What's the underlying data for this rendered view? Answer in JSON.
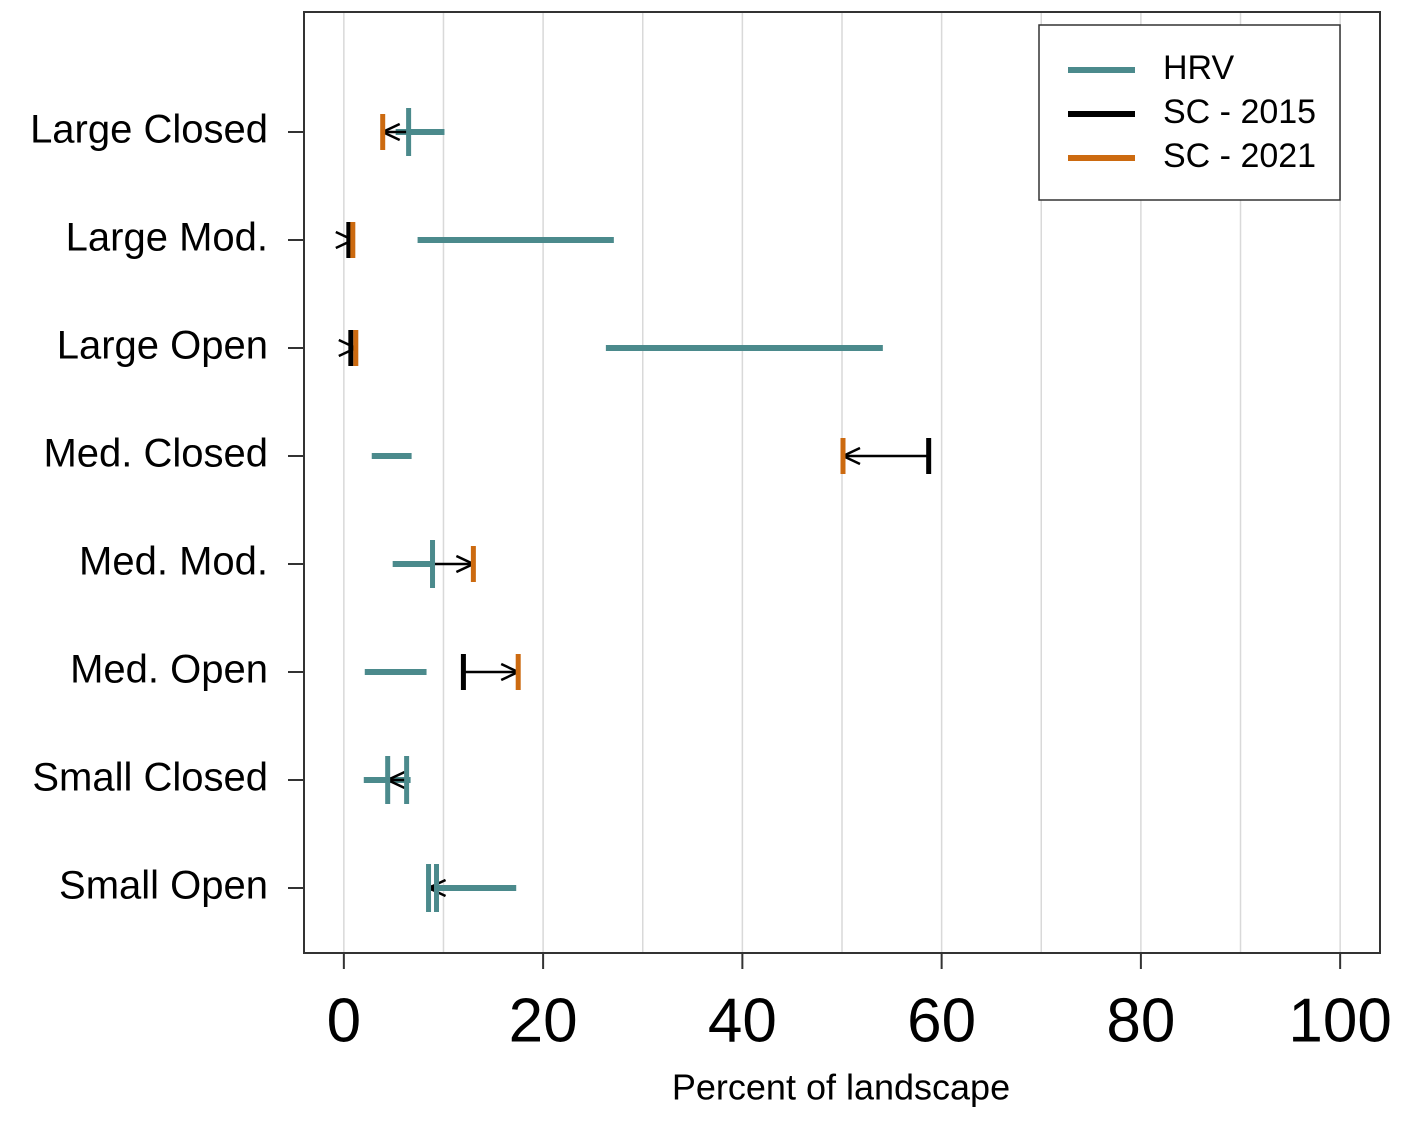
{
  "chart_data": {
    "type": "range-change",
    "xlabel": "Percent of landscape",
    "categories": [
      "Large Closed",
      "Large Mod.",
      "Large Open",
      "Med. Closed",
      "Med. Mod.",
      "Med. Open",
      "Small Closed",
      "Small Open"
    ],
    "series": [
      {
        "name": "HRV",
        "color": "#4b8a8c",
        "low": [
          5.2,
          7.4,
          26.3,
          2.8,
          4.9,
          2.1,
          2.0,
          8.5
        ],
        "high": [
          10.1,
          27.1,
          54.1,
          6.8,
          9.0,
          8.3,
          6.7,
          17.3
        ]
      },
      {
        "name": "SC - 2015",
        "color": "#000000",
        "values": [
          6.5,
          0.5,
          0.7,
          58.7,
          8.9,
          12.0,
          6.3,
          9.3
        ]
      },
      {
        "name": "SC - 2021",
        "color": "#cc6a10",
        "values": [
          3.9,
          0.9,
          1.2,
          50.1,
          13.0,
          17.5,
          4.4,
          8.5
        ]
      }
    ],
    "xlim": [
      -4,
      104
    ],
    "xticks": [
      0,
      20,
      40,
      60,
      80,
      100
    ],
    "xgrid": [
      0,
      10,
      20,
      30,
      40,
      50,
      60,
      70,
      80,
      90,
      100
    ],
    "legend": "top-right"
  }
}
